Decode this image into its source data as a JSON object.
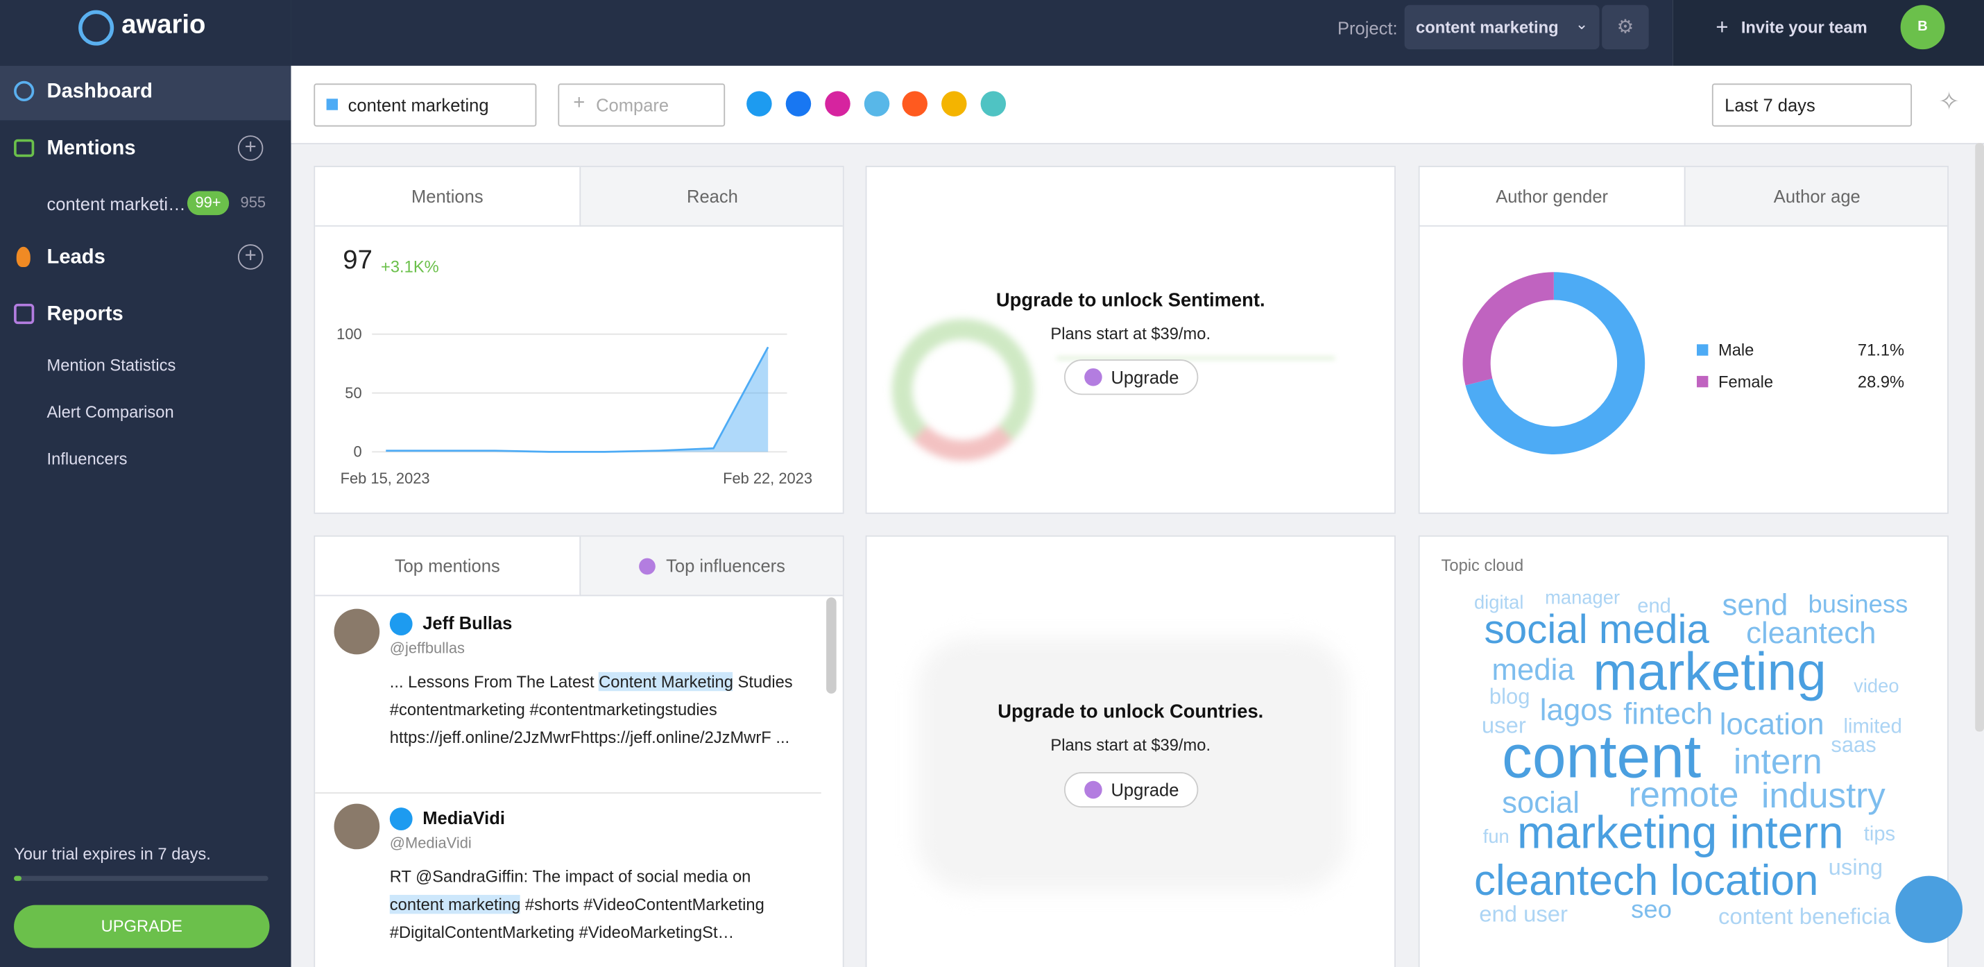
{
  "sidebar": {
    "logo": "awario",
    "dashboard": "Dashboard",
    "mentions": "Mentions",
    "alert": {
      "name": "content marketi…",
      "badge": "99+",
      "count": "955"
    },
    "leads": "Leads",
    "reports": "Reports",
    "report_items": [
      "Mention Statistics",
      "Alert Comparison",
      "Influencers"
    ],
    "trial": "Your trial expires in 7 days.",
    "upgrade": "UPGRADE"
  },
  "topbar": {
    "project_label": "Project:",
    "project": "content marketing",
    "invite": "Invite your team",
    "avatar": "B"
  },
  "filters": {
    "alert": "content marketing",
    "compare": "Compare",
    "period": "Last 7 days"
  },
  "mentions_card": {
    "tabs": [
      "Mentions",
      "Reach"
    ],
    "total": "97",
    "change": "+3.1K%",
    "chart": {
      "type": "line",
      "categories": [
        "Feb 15, 2023",
        null,
        null,
        null,
        null,
        null,
        null,
        "Feb 22, 2023"
      ],
      "values": [
        1,
        1,
        1,
        0,
        0,
        1,
        3,
        89
      ],
      "color": "#4dabf5",
      "ylim": [
        0,
        100
      ],
      "yticks": [
        0,
        50,
        100
      ],
      "grid": true
    }
  },
  "sentiment_card": {
    "title": "Upgrade to unlock Sentiment.",
    "plans": "Plans start at $39/mo.",
    "button": "Upgrade"
  },
  "gender_card": {
    "tabs": [
      "Author gender",
      "Author age"
    ],
    "chart": {
      "type": "pie",
      "categories": [
        "Male",
        "Female"
      ],
      "values": [
        71.1,
        28.9
      ],
      "value_labels": [
        "71.1%",
        "28.9%"
      ],
      "colors": [
        "#4dabf5",
        "#c063c0"
      ]
    }
  },
  "top_mentions": {
    "tabs": [
      "Top mentions",
      "Top influencers"
    ],
    "items": [
      {
        "name": "Jeff Bullas",
        "handle": "@jeffbullas",
        "before": "... Lessons From The Latest ",
        "highlight": "Content Marketing",
        "after": " Studies #contentmarketing #contentmarketingstudies https://jeff.online/2JzMwrFhttps://jeff.online/2JzMwrF ..."
      },
      {
        "name": "MediaVidi",
        "handle": "@MediaVidi",
        "before": "RT @SandraGiffin: The impact of social media on ",
        "highlight": "content marketing",
        "after": " #shorts #VideoContentMarketing #DigitalContentMarketing #VideoMarketingSt…"
      }
    ]
  },
  "countries_card": {
    "title": "Upgrade to unlock Countries.",
    "plans": "Plans start at $39/mo.",
    "button": "Upgrade"
  },
  "topic_cloud": {
    "title": "Topic cloud",
    "words": [
      "digital",
      "manager",
      "end",
      "send",
      "business",
      "social media",
      "cleantech",
      "media",
      "marketing",
      "video",
      "blog",
      "lagos",
      "fintech",
      "location",
      "user",
      "limited",
      "content",
      "saas",
      "intern",
      "social",
      "remote",
      "industry",
      "fun",
      "marketing intern",
      "tips",
      "using",
      "cleantech location",
      "end user",
      "seo",
      "content beneficia"
    ]
  }
}
